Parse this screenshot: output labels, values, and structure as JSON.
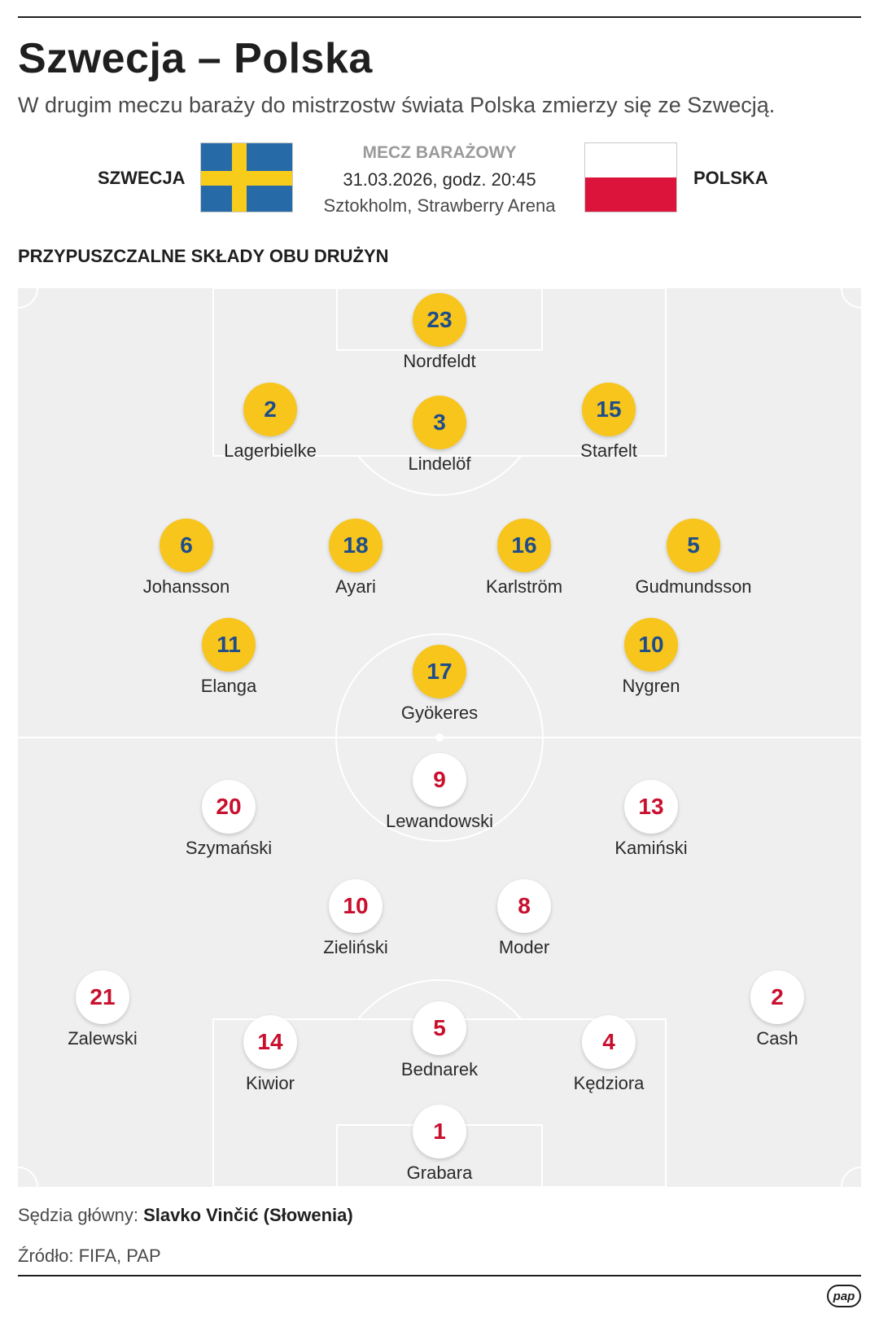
{
  "header": {
    "title": "Szwecja – Polska",
    "subtitle": "W drugim meczu baraży do mistrzostw świata Polska zmierzy się ze Szwecją."
  },
  "match": {
    "home": "SZWECJA",
    "away": "POLSKA",
    "type": "MECZ BARAŻOWY",
    "date": "31.03.2026, godz. 20:45",
    "venue": "Sztokholm, Strawberry Arena"
  },
  "section_title": "PRZYPUSZCZALNE SKŁADY OBU DRUŻYN",
  "colors": {
    "sweden_badge": "#f7c51c",
    "sweden_number": "#1f4d8a",
    "poland_badge": "#ffffff",
    "poland_number": "#c8102e",
    "pitch": "#efefef"
  },
  "sweden_players": [
    {
      "number": "23",
      "name": "Nordfeldt"
    },
    {
      "number": "2",
      "name": "Lagerbielke"
    },
    {
      "number": "3",
      "name": "Lindelöf"
    },
    {
      "number": "15",
      "name": "Starfelt"
    },
    {
      "number": "6",
      "name": "Johansson"
    },
    {
      "number": "18",
      "name": "Ayari"
    },
    {
      "number": "16",
      "name": "Karlström"
    },
    {
      "number": "5",
      "name": "Gudmundsson"
    },
    {
      "number": "11",
      "name": "Elanga"
    },
    {
      "number": "17",
      "name": "Gyökeres"
    },
    {
      "number": "10",
      "name": "Nygren"
    }
  ],
  "poland_players": [
    {
      "number": "9",
      "name": "Lewandowski"
    },
    {
      "number": "20",
      "name": "Szymański"
    },
    {
      "number": "13",
      "name": "Kamiński"
    },
    {
      "number": "10",
      "name": "Zieliński"
    },
    {
      "number": "8",
      "name": "Moder"
    },
    {
      "number": "21",
      "name": "Zalewski"
    },
    {
      "number": "2",
      "name": "Cash"
    },
    {
      "number": "14",
      "name": "Kiwior"
    },
    {
      "number": "5",
      "name": "Bednarek"
    },
    {
      "number": "4",
      "name": "Kędziora"
    },
    {
      "number": "1",
      "name": "Grabara"
    }
  ],
  "footer": {
    "referee_label": "Sędzia główny:",
    "referee_name": "Slavko Vinčić (Słowenia)",
    "source": "Źródło: FIFA, PAP",
    "logo_text": "pap"
  }
}
